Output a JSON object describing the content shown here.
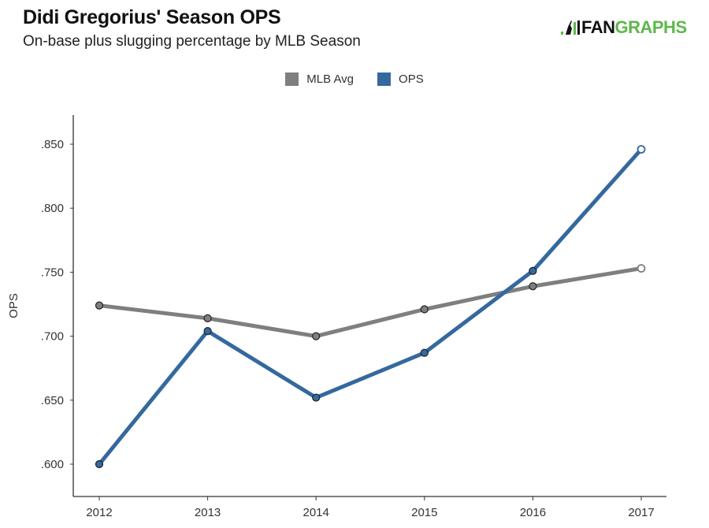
{
  "header": {
    "title": "Didi Gregorius' Season OPS",
    "subtitle": "On-base plus slugging percentage by MLB Season",
    "logo_text_dark": "FAN",
    "logo_text_green": "GRAPHS"
  },
  "colors": {
    "mlb_avg": "#7f7f7f",
    "ops": "#34699e",
    "logo_green": "#5cb84c"
  },
  "chart_data": {
    "type": "line",
    "title": "Didi Gregorius' Season OPS",
    "subtitle": "On-base plus slugging percentage by MLB Season",
    "xlabel": "",
    "ylabel": "OPS",
    "x": [
      2012,
      2013,
      2014,
      2015,
      2016,
      2017
    ],
    "x_tick_labels": [
      "2012",
      "2013",
      "2014",
      "2015",
      "2016",
      "2017"
    ],
    "y_ticks": [
      0.6,
      0.65,
      0.7,
      0.75,
      0.8,
      0.85
    ],
    "y_tick_labels": [
      ".600",
      ".650",
      ".700",
      ".750",
      ".800",
      ".850"
    ],
    "ylim": [
      0.578,
      0.873
    ],
    "grid": false,
    "legend_position": "top-center",
    "series": [
      {
        "name": "MLB Avg",
        "color": "#7f7f7f",
        "values": [
          0.724,
          0.714,
          0.7,
          0.721,
          0.739,
          0.753
        ],
        "last_point_hollow": true
      },
      {
        "name": "OPS",
        "color": "#34699e",
        "values": [
          0.6,
          0.704,
          0.652,
          0.687,
          0.751,
          0.846
        ],
        "last_point_hollow": true
      }
    ]
  }
}
